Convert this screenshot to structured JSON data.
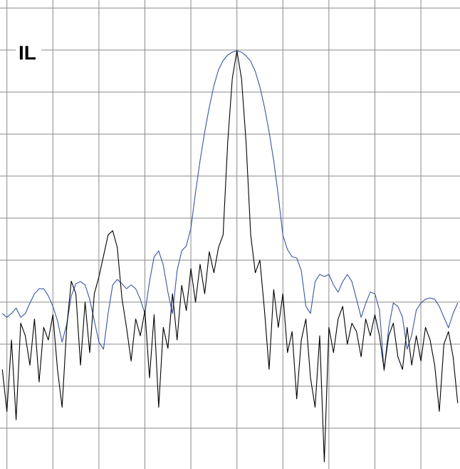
{
  "chart_data": {
    "type": "line",
    "title": "IL",
    "x": [
      -5.1,
      -5.0,
      -4.9,
      -4.8,
      -4.7,
      -4.6,
      -4.5,
      -4.4,
      -4.3,
      -4.2,
      -4.1,
      -4.0,
      -3.9,
      -3.8,
      -3.7,
      -3.6,
      -3.5,
      -3.4,
      -3.3,
      -3.2,
      -3.1,
      -3.0,
      -2.9,
      -2.8,
      -2.7,
      -2.6,
      -2.5,
      -2.4,
      -2.3,
      -2.2,
      -2.1,
      -2.0,
      -1.9,
      -1.8,
      -1.7,
      -1.6,
      -1.5,
      -1.4,
      -1.3,
      -1.2,
      -1.1,
      -1.0,
      -0.9,
      -0.8,
      -0.7,
      -0.6,
      -0.5,
      -0.4,
      -0.3,
      -0.2,
      -0.1,
      0,
      0.1,
      0.2,
      0.3,
      0.4,
      0.5,
      0.6,
      0.7,
      0.8,
      0.9,
      1.0,
      1.1,
      1.2,
      1.3,
      1.4,
      1.5,
      1.6,
      1.7,
      1.8,
      1.9,
      2.0,
      2.1,
      2.2,
      2.3,
      2.4,
      2.5,
      2.6,
      2.7,
      2.8,
      2.9,
      3.0,
      3.1,
      3.2,
      3.3,
      3.4,
      3.5,
      3.6,
      3.7,
      3.8,
      3.9,
      4.0,
      4.1,
      4.2,
      4.3,
      4.4,
      4.5,
      4.6,
      4.7,
      4.8
    ],
    "series": [
      {
        "color": "#3a55a4",
        "values": [
          -7.27,
          -7.36,
          -7.27,
          -7.14,
          -7.36,
          -7.27,
          -7.02,
          -6.8,
          -6.68,
          -6.68,
          -6.85,
          -7.1,
          -7.44,
          -7.95,
          -7.53,
          -6.85,
          -6.56,
          -6.51,
          -6.59,
          -6.93,
          -7.44,
          -7.95,
          -8.12,
          -7.27,
          -6.59,
          -6.46,
          -6.56,
          -6.68,
          -6.59,
          -6.68,
          -6.93,
          -7.27,
          -6.51,
          -5.92,
          -5.78,
          -6.12,
          -6.76,
          -7.27,
          -6.25,
          -5.78,
          -5.66,
          -5.24,
          -4.39,
          -3.63,
          -2.95,
          -2.36,
          -1.85,
          -1.47,
          -1.25,
          -1.12,
          -1.05,
          -1.02,
          -1.05,
          -1.14,
          -1.27,
          -1.51,
          -1.88,
          -2.36,
          -2.95,
          -3.63,
          -4.47,
          -5.41,
          -5.75,
          -5.92,
          -5.95,
          -6.25,
          -7.1,
          -7.27,
          -6.51,
          -6.34,
          -6.39,
          -6.34,
          -6.59,
          -6.76,
          -6.51,
          -6.34,
          -6.51,
          -6.93,
          -7.36,
          -7.03,
          -6.76,
          -6.8,
          -7.19,
          -8.63,
          -7.61,
          -7.02,
          -7.1,
          -7.36,
          -8.12,
          -7.78,
          -7.19,
          -7.02,
          -6.93,
          -6.9,
          -6.93,
          -7.1,
          -7.36,
          -7.61,
          -7.27,
          -7.02
        ]
      },
      {
        "color": "#000000",
        "values": [
          -8.6,
          -9.6,
          -7.9,
          -9.8,
          -7.5,
          -7.8,
          -8.5,
          -7.4,
          -8.9,
          -7.6,
          -7.9,
          -7.3,
          -8.6,
          -9.5,
          -7.6,
          -6.5,
          -6.8,
          -8.5,
          -7.0,
          -8.2,
          -6.8,
          -6.4,
          -5.9,
          -5.4,
          -5.3,
          -5.7,
          -6.9,
          -7.6,
          -8.4,
          -7.4,
          -7.8,
          -7.2,
          -8.8,
          -7.3,
          -9.5,
          -7.6,
          -8.1,
          -6.8,
          -7.9,
          -6.6,
          -7.2,
          -6.2,
          -7.0,
          -6.1,
          -6.8,
          -5.8,
          -6.3,
          -5.7,
          -5.4,
          -3.2,
          -1.68,
          -1.02,
          -1.68,
          -3.2,
          -5.4,
          -6.3,
          -6.0,
          -7.2,
          -8.6,
          -6.7,
          -7.6,
          -6.8,
          -8.2,
          -7.7,
          -9.3,
          -7.9,
          -7.4,
          -8.8,
          -9.5,
          -7.8,
          -10.8,
          -7.6,
          -8.2,
          -7.4,
          -7.1,
          -8.0,
          -7.5,
          -7.7,
          -8.3,
          -7.4,
          -7.8,
          -7.3,
          -7.8,
          -8.6,
          -7.8,
          -7.5,
          -8.3,
          -8.6,
          -7.6,
          -8.5,
          -7.8,
          -8.4,
          -7.6,
          -7.9,
          -8.5,
          -9.6,
          -8.0,
          -7.7,
          -8.3,
          -9.4
        ]
      }
    ],
    "xlim": [
      -5.15,
      4.85
    ],
    "xticks": [
      -5,
      -4,
      -3,
      -2,
      -1,
      0,
      1,
      2,
      3,
      4
    ],
    "ylim": [
      -10.97,
      0.19
    ],
    "yticks": [
      -10,
      -9,
      -8,
      -7,
      -6,
      -5,
      -4,
      -3,
      -2,
      -1,
      0
    ],
    "grid": true
  }
}
